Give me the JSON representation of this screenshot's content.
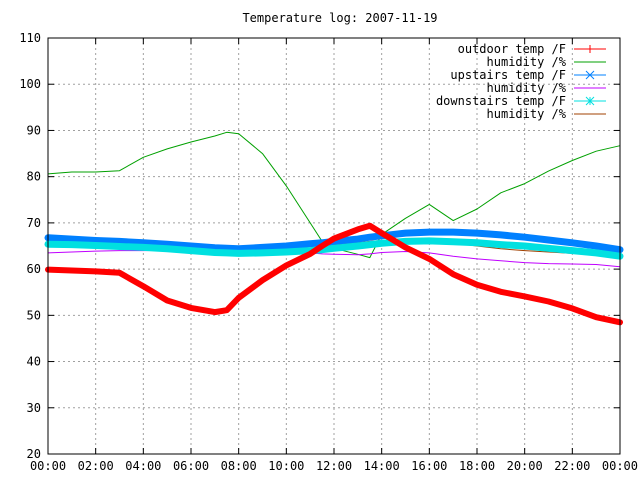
{
  "chart_data": {
    "type": "line",
    "title": "Temperature log: 2007-11-19",
    "xlabel": "",
    "ylabel": "",
    "ylim": [
      20,
      110
    ],
    "xlim": [
      0,
      24
    ],
    "x_tick_labels": [
      "00:00",
      "02:00",
      "04:00",
      "06:00",
      "08:00",
      "10:00",
      "12:00",
      "14:00",
      "16:00",
      "18:00",
      "20:00",
      "22:00",
      "00:00"
    ],
    "y_ticks": [
      20,
      30,
      40,
      50,
      60,
      70,
      80,
      90,
      100,
      110
    ],
    "grid": true,
    "legend_position": "top-right",
    "x": [
      0,
      1,
      2,
      3,
      4,
      5,
      6,
      7,
      7.5,
      8,
      9,
      10,
      11,
      11.5,
      12,
      13,
      13.5,
      14,
      15,
      16,
      17,
      18,
      19,
      20,
      21,
      22,
      23,
      24
    ],
    "series": [
      {
        "name": "outdoor temp /F",
        "color": "#ff0000",
        "marker": "plus",
        "values": [
          59.9,
          59.7,
          59.5,
          59.2,
          56.3,
          53.2,
          51.6,
          50.7,
          51.1,
          53.8,
          57.6,
          60.8,
          63.3,
          65.0,
          66.6,
          68.6,
          69.4,
          67.8,
          64.7,
          62.2,
          58.9,
          56.6,
          55.1,
          54.1,
          53.0,
          51.5,
          49.6,
          48.5
        ]
      },
      {
        "name": "humidity /%",
        "color": "#00a000",
        "marker": "none",
        "values": [
          80.6,
          81.0,
          81.0,
          81.3,
          84.2,
          86.0,
          87.5,
          88.8,
          89.6,
          89.3,
          85.0,
          78.0,
          70.0,
          66.0,
          64.5,
          63.2,
          62.5,
          67.5,
          71.0,
          74.0,
          70.5,
          73.0,
          76.5,
          78.5,
          81.2,
          83.5,
          85.5,
          86.7
        ]
      },
      {
        "name": "upstairs temp /F",
        "color": "#0080ff",
        "marker": "x",
        "values": [
          66.8,
          66.5,
          66.2,
          66.0,
          65.7,
          65.4,
          65.0,
          64.6,
          64.5,
          64.4,
          64.7,
          65.0,
          65.5,
          65.7,
          66.0,
          66.5,
          66.9,
          67.2,
          67.8,
          68.0,
          68.0,
          67.8,
          67.4,
          66.9,
          66.3,
          65.7,
          65.0,
          64.2
        ]
      },
      {
        "name": "humidity /%",
        "color": "#c000ff",
        "marker": "none",
        "values": [
          63.5,
          63.7,
          63.9,
          64.0,
          64.0,
          64.1,
          64.1,
          64.2,
          64.2,
          64.2,
          64.0,
          63.8,
          63.5,
          63.3,
          63.2,
          63.1,
          63.3,
          63.6,
          63.8,
          63.5,
          62.8,
          62.2,
          61.8,
          61.4,
          61.2,
          61.1,
          61.0,
          60.5
        ]
      },
      {
        "name": "downstairs temp /F",
        "color": "#00e0e0",
        "marker": "star",
        "values": [
          65.4,
          65.3,
          65.1,
          64.9,
          64.7,
          64.4,
          64.0,
          63.6,
          63.5,
          63.4,
          63.5,
          63.7,
          64.0,
          64.2,
          64.5,
          65.0,
          65.3,
          65.6,
          66.0,
          66.1,
          65.9,
          65.7,
          65.3,
          65.0,
          64.5,
          64.0,
          63.5,
          62.8
        ]
      },
      {
        "name": "humidity /%",
        "color": "#a04000",
        "marker": "none",
        "values": [
          65.8,
          65.9,
          65.9,
          65.8,
          65.7,
          65.4,
          65.0,
          64.6,
          64.4,
          64.3,
          64.5,
          64.6,
          64.9,
          65.1,
          65.3,
          65.7,
          66.0,
          66.2,
          66.4,
          66.3,
          65.6,
          65.0,
          64.4,
          64.0,
          63.7,
          63.4,
          63.1,
          62.7
        ]
      }
    ]
  }
}
